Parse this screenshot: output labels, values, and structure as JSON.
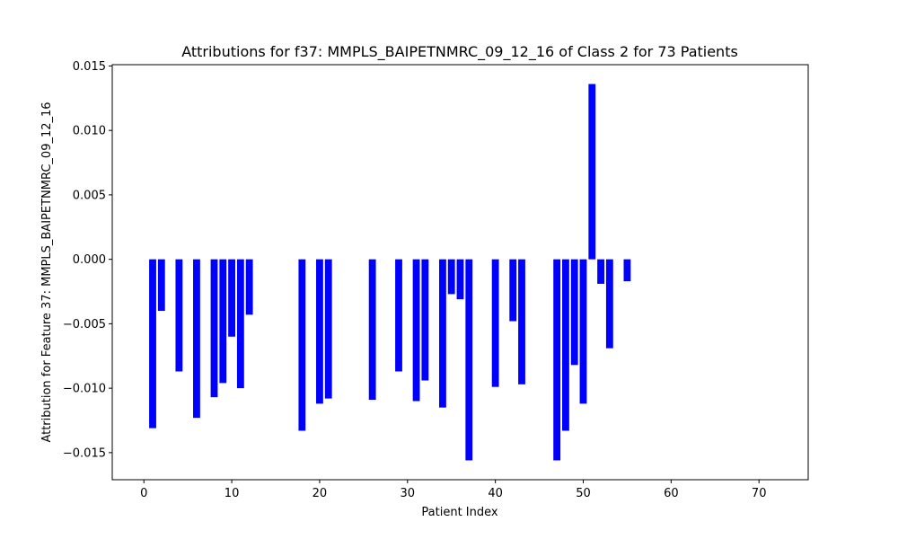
{
  "chart_data": {
    "type": "bar",
    "title": "Attributions for f37: MMPLS_BAIPETNMRC_09_12_16 of Class 2 for 73 Patients",
    "xlabel": "Patient Index",
    "ylabel": "Attribution for Feature 37: MMPLS_BAIPETNMRC_09_12_16",
    "xlim": [
      -3.6,
      75.6
    ],
    "ylim": [
      -0.0171,
      0.0151
    ],
    "xticks": [
      0,
      10,
      20,
      30,
      40,
      50,
      60,
      70
    ],
    "xtick_labels": [
      "0",
      "10",
      "20",
      "30",
      "40",
      "50",
      "60",
      "70"
    ],
    "yticks": [
      -0.015,
      -0.01,
      -0.005,
      0.0,
      0.005,
      0.01,
      0.015
    ],
    "ytick_labels": [
      "−0.015",
      "−0.010",
      "−0.005",
      "0.000",
      "0.005",
      "0.010",
      "0.015"
    ],
    "bar_color": "#0000ff",
    "grid": false,
    "x": [
      1,
      2,
      4,
      6,
      8,
      9,
      10,
      11,
      12,
      18,
      20,
      21,
      26,
      29,
      31,
      32,
      34,
      35,
      36,
      37,
      40,
      42,
      43,
      47,
      48,
      49,
      50,
      51,
      52,
      53,
      55
    ],
    "values": [
      -0.0131,
      -0.004,
      -0.0087,
      -0.0123,
      -0.0107,
      -0.0096,
      -0.006,
      -0.01,
      -0.0043,
      -0.0133,
      -0.0112,
      -0.0108,
      -0.0109,
      -0.0087,
      -0.011,
      -0.0094,
      -0.0115,
      -0.0027,
      -0.0031,
      -0.0156,
      -0.0099,
      -0.0048,
      -0.0097,
      -0.0156,
      -0.0133,
      -0.0082,
      -0.0112,
      0.0136,
      -0.0019,
      -0.0069,
      -0.0017
    ]
  }
}
